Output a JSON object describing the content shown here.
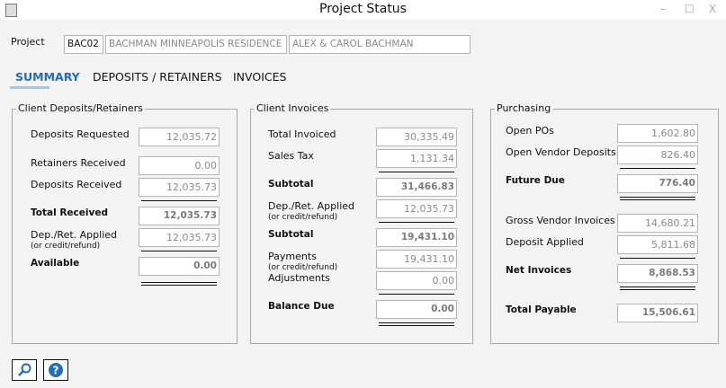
{
  "window": {
    "title": "Project Status",
    "minimize": "–",
    "maximize": "☐",
    "close": "X"
  },
  "project": {
    "label": "Project",
    "code": "BAC02",
    "name": "BACHMAN MINNEAPOLIS RESIDENCE",
    "client": "ALEX  & CAROL BACHMAN"
  },
  "tabs": [
    {
      "label": "SUMMARY",
      "active": true
    },
    {
      "label": "DEPOSITS / RETAINERS"
    },
    {
      "label": "INVOICES"
    }
  ],
  "colors": {
    "accent": "#1f6fb5",
    "tab_underline": "#a9c6dc"
  },
  "groups": [
    {
      "title": "Client Deposits/Retainers",
      "rows": [
        {
          "label": "Deposits Requested",
          "value": "12,035.72"
        },
        {
          "label": "Retainers Received",
          "value": "0.00"
        },
        {
          "label": "Deposits Received",
          "value": "12,035.73"
        },
        {
          "label": "Total Received",
          "value": "12,035.73",
          "bold": true
        },
        {
          "label": "Dep./Ret. Applied",
          "sub": "(or credit/refund)",
          "value": "12,035.73"
        },
        {
          "label": "Available",
          "value": "0.00",
          "bold": true
        }
      ]
    },
    {
      "title": "Client Invoices",
      "rows": [
        {
          "label": "Total Invoiced",
          "value": "30,335.49"
        },
        {
          "label": "Sales Tax",
          "value": "1,131.34"
        },
        {
          "label": "Subtotal",
          "value": "31,466.83",
          "bold": true
        },
        {
          "label": "Dep./Ret. Applied",
          "sub": "(or credit/refund)",
          "value": "12,035.73"
        },
        {
          "label": "Subtotal",
          "value": "19,431.10",
          "bold": true
        },
        {
          "label": "Payments",
          "sub": "(or credit/refund)",
          "value": "19,431.10"
        },
        {
          "label": "Adjustments",
          "value": "0.00"
        },
        {
          "label": "Balance Due",
          "value": "0.00",
          "bold": true
        }
      ]
    },
    {
      "title": "Purchasing",
      "rows": [
        {
          "label": "Open POs",
          "value": "1,602.80"
        },
        {
          "label": "Open Vendor Deposits",
          "value": "826.40"
        },
        {
          "label": "Future Due",
          "value": "776.40",
          "bold": true
        },
        {
          "label": "Gross Vendor Invoices",
          "value": "14,680.21"
        },
        {
          "label": "Deposit Applied",
          "value": "5,811.68"
        },
        {
          "label": "Net Invoices",
          "value": "8,868.53",
          "bold": true
        },
        {
          "label": "Total Payable",
          "value": "15,506.61",
          "bold": true
        }
      ]
    }
  ],
  "buttons": [
    {
      "icon": "magnifier-icon"
    },
    {
      "icon": "help-icon"
    }
  ]
}
